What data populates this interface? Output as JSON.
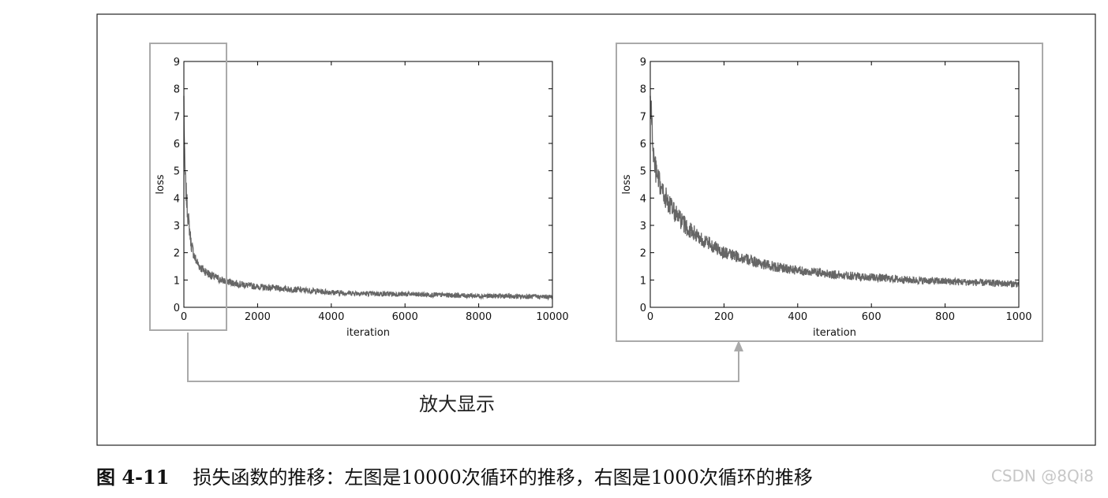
{
  "figure": {
    "annotation": "放大显示",
    "caption_label": "图 4-11",
    "caption_text": "损失函数的推移：左图是10000次循环的推移，右图是1000次循环的推移",
    "watermark": "CSDN @8Qi8"
  },
  "chart_data": [
    {
      "type": "line",
      "title": "",
      "xlabel": "iteration",
      "ylabel": "loss",
      "xlim": [
        0,
        10000
      ],
      "ylim": [
        0,
        9
      ],
      "xticks": [
        0,
        2000,
        4000,
        6000,
        8000,
        10000
      ],
      "yticks": [
        0,
        1,
        2,
        3,
        4,
        5,
        6,
        7,
        8,
        9
      ],
      "grid": false,
      "series": [
        {
          "color": "#666666",
          "x": [
            0,
            20,
            50,
            100,
            200,
            300,
            400,
            500,
            700,
            1000,
            1500,
            2000,
            3000,
            4000,
            5000,
            6000,
            7000,
            8000,
            9000,
            10000
          ],
          "y": [
            7.6,
            5.3,
            4.4,
            3.5,
            2.3,
            1.8,
            1.55,
            1.4,
            1.2,
            1.0,
            0.85,
            0.75,
            0.65,
            0.55,
            0.5,
            0.48,
            0.45,
            0.42,
            0.4,
            0.38
          ]
        }
      ]
    },
    {
      "type": "line",
      "title": "",
      "xlabel": "iteration",
      "ylabel": "loss",
      "xlim": [
        0,
        1000
      ],
      "ylim": [
        0,
        9
      ],
      "xticks": [
        0,
        200,
        400,
        600,
        800,
        1000
      ],
      "yticks": [
        0,
        1,
        2,
        3,
        4,
        5,
        6,
        7,
        8,
        9
      ],
      "grid": false,
      "series": [
        {
          "color": "#666666",
          "x": [
            0,
            5,
            10,
            20,
            30,
            50,
            75,
            100,
            150,
            200,
            250,
            300,
            350,
            400,
            500,
            600,
            700,
            800,
            900,
            1000
          ],
          "y": [
            7.7,
            6.5,
            5.3,
            4.7,
            4.3,
            3.8,
            3.3,
            2.9,
            2.4,
            2.0,
            1.8,
            1.6,
            1.45,
            1.35,
            1.2,
            1.1,
            1.0,
            0.95,
            0.9,
            0.85
          ]
        }
      ]
    }
  ]
}
